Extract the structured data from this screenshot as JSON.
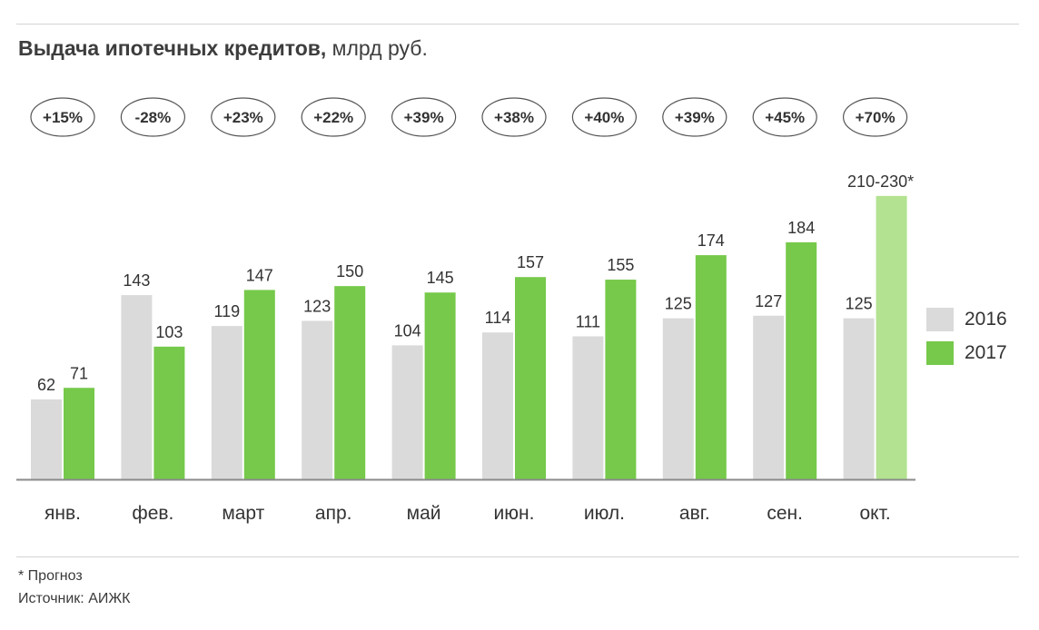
{
  "header": {
    "title_bold": "Выдача ипотечных кредитов,",
    "title_rest": " млрд руб."
  },
  "chart_data": {
    "type": "bar",
    "title": "Выдача ипотечных кредитов, млрд руб.",
    "categories": [
      "янв.",
      "фев.",
      "март",
      "апр.",
      "май",
      "июн.",
      "июл.",
      "авг.",
      "сен.",
      "окт."
    ],
    "series": [
      {
        "name": "2016",
        "color": "#dadada",
        "values": [
          62,
          143,
          119,
          123,
          104,
          114,
          111,
          125,
          127,
          125
        ]
      },
      {
        "name": "2017",
        "color": "#76c94a",
        "forecast_color": "#b3e291",
        "values": [
          71,
          103,
          147,
          150,
          145,
          157,
          155,
          174,
          184,
          220
        ]
      }
    ],
    "value_labels_2017": [
      "71",
      "103",
      "147",
      "150",
      "145",
      "157",
      "155",
      "174",
      "184",
      "210-230*"
    ],
    "growth_labels": [
      "+15%",
      "-28%",
      "+23%",
      "+22%",
      "+39%",
      "+38%",
      "+40%",
      "+39%",
      "+45%",
      "+70%"
    ],
    "forecast_index": 9,
    "ylim": [
      0,
      240
    ],
    "grid": false,
    "legend_position": "right"
  },
  "legend": {
    "items": [
      {
        "label": "2016",
        "color": "#dadada"
      },
      {
        "label": "2017",
        "color": "#76c94a"
      }
    ]
  },
  "footer": {
    "note": "* Прогноз",
    "source": "Источник: АИЖК"
  }
}
